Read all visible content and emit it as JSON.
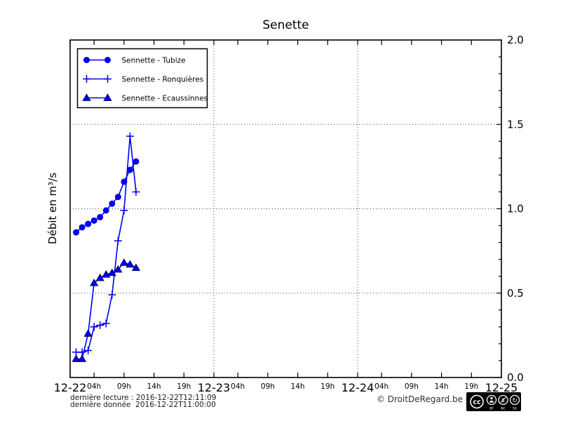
{
  "title": "Senette",
  "accent_color": "#0000ee",
  "chart_data": {
    "type": "line",
    "title": "Senette",
    "xlabel": "",
    "ylabel": "Débit en m³/s",
    "ylim": [
      0,
      2.0
    ],
    "xlim_hours": [
      0,
      72
    ],
    "x_start_date": "2016-12-22",
    "grid": "dotted",
    "legend_position": "upper left",
    "y_ticks": [
      {
        "value": 0.0,
        "label": "0.0"
      },
      {
        "value": 0.5,
        "label": "0.5"
      },
      {
        "value": 1.0,
        "label": "1.0"
      },
      {
        "value": 1.5,
        "label": "1.5"
      },
      {
        "value": 2.0,
        "label": "2.0"
      }
    ],
    "y_minor_step": 0.1,
    "y_gridlines": [
      0.5,
      1.0,
      1.5
    ],
    "x_gridlines_hours": [
      24,
      48
    ],
    "x_day_ticks": [
      {
        "hour": 0,
        "label": "12-22"
      },
      {
        "hour": 24,
        "label": "12-23"
      },
      {
        "hour": 48,
        "label": "12-24"
      },
      {
        "hour": 72,
        "label": "12-25"
      }
    ],
    "x_hour_ticks": [
      {
        "hour": 4,
        "label": "04h"
      },
      {
        "hour": 9,
        "label": "09h"
      },
      {
        "hour": 14,
        "label": "14h"
      },
      {
        "hour": 19,
        "label": "19h"
      },
      {
        "hour": 28,
        "label": "04h"
      },
      {
        "hour": 33,
        "label": "09h"
      },
      {
        "hour": 38,
        "label": "14h"
      },
      {
        "hour": 43,
        "label": "19h"
      },
      {
        "hour": 52,
        "label": "04h"
      },
      {
        "hour": 57,
        "label": "09h"
      },
      {
        "hour": 62,
        "label": "14h"
      },
      {
        "hour": 67,
        "label": "19h"
      }
    ],
    "series": [
      {
        "name": "Sennette - Tubize",
        "marker": "circle",
        "color": "#0000ee",
        "x_hours": [
          1,
          2,
          3,
          4,
          5,
          6,
          7,
          8,
          9,
          10,
          11
        ],
        "values": [
          0.86,
          0.89,
          0.91,
          0.93,
          0.95,
          0.99,
          1.03,
          1.07,
          1.16,
          1.23,
          1.28
        ]
      },
      {
        "name": "Sennette - Ronquières",
        "marker": "plus",
        "color": "#0000ee",
        "x_hours": [
          1,
          2,
          3,
          4,
          5,
          6,
          7,
          8,
          9,
          10,
          11
        ],
        "values": [
          0.15,
          0.15,
          0.16,
          0.3,
          0.31,
          0.32,
          0.49,
          0.81,
          0.99,
          1.43,
          1.1
        ]
      },
      {
        "name": "Sennette - Ecaussinnes",
        "marker": "triangle",
        "color": "#0000ee",
        "x_hours": [
          1,
          2,
          3,
          4,
          5,
          6,
          7,
          8,
          9,
          10,
          11
        ],
        "values": [
          0.11,
          0.11,
          0.26,
          0.56,
          0.59,
          0.61,
          0.62,
          0.64,
          0.68,
          0.67,
          0.65
        ]
      }
    ]
  },
  "footer": {
    "line1": "dernière lecture : 2016-12-22T12:11:09",
    "line2": "dernière donnée  2016-12-22T11:00:00",
    "copyright": "© DroitDeRegard.be",
    "license": {
      "name": "CC BY-NC-SA",
      "cc_symbol": "cc",
      "nc_symbol": "$",
      "sa_symbol": "↻",
      "labels": [
        "BY",
        "NC",
        "SA"
      ]
    }
  }
}
